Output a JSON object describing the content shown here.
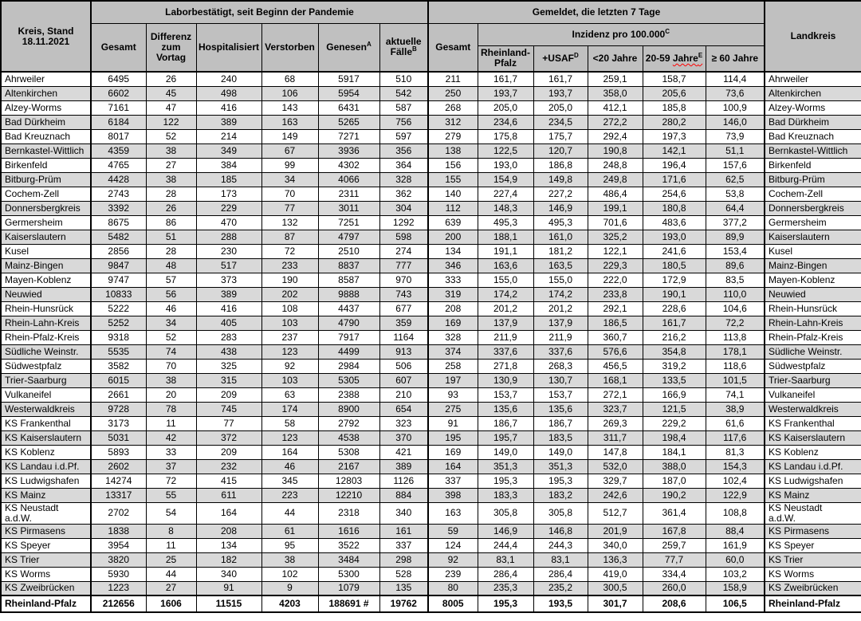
{
  "colors": {
    "header_bg": "#c0c0c0",
    "stripe_bg": "#d9d9d9",
    "row_bg": "#ffffff",
    "squiggle_color": "#ff0000"
  },
  "header": {
    "corner": "Kreis, Stand\n18.11.2021",
    "labor_group": "Laborbestätigt, seit Beginn der Pandemie",
    "gemeldet_group": "Gemeldet, die letzten 7 Tage",
    "inzidenz_group": "Inzidenz pro 100.000",
    "inzidenz_group_sup": "C",
    "landkreis": "Landkreis",
    "gemeldet_gesamt": "Gesamt",
    "labor_cols": [
      {
        "label": "Gesamt",
        "sup": ""
      },
      {
        "label": "Differenz zum Vortag",
        "sup": ""
      },
      {
        "label": "Hospitalisiert",
        "sup": ""
      },
      {
        "label": "Verstorben",
        "sup": ""
      },
      {
        "label": "Genesen",
        "sup": "A"
      },
      {
        "label": "aktuelle Fälle",
        "sup": "B"
      }
    ],
    "inzidenz_cols": [
      {
        "label": "Rheinland-Pfalz",
        "sup": ""
      },
      {
        "label": "+USAF",
        "sup": "D"
      },
      {
        "label": "<20 Jahre",
        "sup": ""
      },
      {
        "label": "20-59 ",
        "squiggle": "Jahre",
        "sup": "E"
      },
      {
        "label": "≥ 60 Jahre",
        "sup": ""
      }
    ]
  },
  "rows": [
    {
      "kreis": "Ahrweiler",
      "values": [
        "6495",
        "26",
        "240",
        "68",
        "5917",
        "510",
        "211",
        "161,7",
        "161,7",
        "259,1",
        "158,7",
        "114,4"
      ]
    },
    {
      "kreis": "Altenkirchen",
      "values": [
        "6602",
        "45",
        "498",
        "106",
        "5954",
        "542",
        "250",
        "193,7",
        "193,7",
        "358,0",
        "205,6",
        "73,6"
      ]
    },
    {
      "kreis": "Alzey-Worms",
      "values": [
        "7161",
        "47",
        "416",
        "143",
        "6431",
        "587",
        "268",
        "205,0",
        "205,0",
        "412,1",
        "185,8",
        "100,9"
      ]
    },
    {
      "kreis": "Bad Dürkheim",
      "values": [
        "6184",
        "122",
        "389",
        "163",
        "5265",
        "756",
        "312",
        "234,6",
        "234,5",
        "272,2",
        "280,2",
        "146,0"
      ]
    },
    {
      "kreis": "Bad Kreuznach",
      "values": [
        "8017",
        "52",
        "214",
        "149",
        "7271",
        "597",
        "279",
        "175,8",
        "175,7",
        "292,4",
        "197,3",
        "73,9"
      ]
    },
    {
      "kreis": "Bernkastel-Wittlich",
      "values": [
        "4359",
        "38",
        "349",
        "67",
        "3936",
        "356",
        "138",
        "122,5",
        "120,7",
        "190,8",
        "142,1",
        "51,1"
      ]
    },
    {
      "kreis": "Birkenfeld",
      "values": [
        "4765",
        "27",
        "384",
        "99",
        "4302",
        "364",
        "156",
        "193,0",
        "186,8",
        "248,8",
        "196,4",
        "157,6"
      ]
    },
    {
      "kreis": "Bitburg-Prüm",
      "values": [
        "4428",
        "38",
        "185",
        "34",
        "4066",
        "328",
        "155",
        "154,9",
        "149,8",
        "249,8",
        "171,6",
        "62,5"
      ]
    },
    {
      "kreis": "Cochem-Zell",
      "values": [
        "2743",
        "28",
        "173",
        "70",
        "2311",
        "362",
        "140",
        "227,4",
        "227,2",
        "486,4",
        "254,6",
        "53,8"
      ]
    },
    {
      "kreis": "Donnersbergkreis",
      "values": [
        "3392",
        "26",
        "229",
        "77",
        "3011",
        "304",
        "112",
        "148,3",
        "146,9",
        "199,1",
        "180,8",
        "64,4"
      ]
    },
    {
      "kreis": "Germersheim",
      "values": [
        "8675",
        "86",
        "470",
        "132",
        "7251",
        "1292",
        "639",
        "495,3",
        "495,3",
        "701,6",
        "483,6",
        "377,2"
      ]
    },
    {
      "kreis": "Kaiserslautern",
      "values": [
        "5482",
        "51",
        "288",
        "87",
        "4797",
        "598",
        "200",
        "188,1",
        "161,0",
        "325,2",
        "193,0",
        "89,9"
      ]
    },
    {
      "kreis": "Kusel",
      "values": [
        "2856",
        "28",
        "230",
        "72",
        "2510",
        "274",
        "134",
        "191,1",
        "181,2",
        "122,1",
        "241,6",
        "153,4"
      ]
    },
    {
      "kreis": "Mainz-Bingen",
      "values": [
        "9847",
        "48",
        "517",
        "233",
        "8837",
        "777",
        "346",
        "163,6",
        "163,5",
        "229,3",
        "180,5",
        "89,6"
      ]
    },
    {
      "kreis": "Mayen-Koblenz",
      "values": [
        "9747",
        "57",
        "373",
        "190",
        "8587",
        "970",
        "333",
        "155,0",
        "155,0",
        "222,0",
        "172,9",
        "83,5"
      ]
    },
    {
      "kreis": "Neuwied",
      "values": [
        "10833",
        "56",
        "389",
        "202",
        "9888",
        "743",
        "319",
        "174,2",
        "174,2",
        "233,8",
        "190,1",
        "110,0"
      ]
    },
    {
      "kreis": "Rhein-Hunsrück",
      "values": [
        "5222",
        "46",
        "416",
        "108",
        "4437",
        "677",
        "208",
        "201,2",
        "201,2",
        "292,1",
        "228,6",
        "104,6"
      ]
    },
    {
      "kreis": "Rhein-Lahn-Kreis",
      "values": [
        "5252",
        "34",
        "405",
        "103",
        "4790",
        "359",
        "169",
        "137,9",
        "137,9",
        "186,5",
        "161,7",
        "72,2"
      ]
    },
    {
      "kreis": "Rhein-Pfalz-Kreis",
      "values": [
        "9318",
        "52",
        "283",
        "237",
        "7917",
        "1164",
        "328",
        "211,9",
        "211,9",
        "360,7",
        "216,2",
        "113,8"
      ]
    },
    {
      "kreis": "Südliche Weinstr.",
      "values": [
        "5535",
        "74",
        "438",
        "123",
        "4499",
        "913",
        "374",
        "337,6",
        "337,6",
        "576,6",
        "354,8",
        "178,1"
      ]
    },
    {
      "kreis": "Südwestpfalz",
      "values": [
        "3582",
        "70",
        "325",
        "92",
        "2984",
        "506",
        "258",
        "271,8",
        "268,3",
        "456,5",
        "319,2",
        "118,6"
      ]
    },
    {
      "kreis": "Trier-Saarburg",
      "values": [
        "6015",
        "38",
        "315",
        "103",
        "5305",
        "607",
        "197",
        "130,9",
        "130,7",
        "168,1",
        "133,5",
        "101,5"
      ]
    },
    {
      "kreis": "Vulkaneifel",
      "values": [
        "2661",
        "20",
        "209",
        "63",
        "2388",
        "210",
        "93",
        "153,7",
        "153,7",
        "272,1",
        "166,9",
        "74,1"
      ]
    },
    {
      "kreis": "Westerwaldkreis",
      "values": [
        "9728",
        "78",
        "745",
        "174",
        "8900",
        "654",
        "275",
        "135,6",
        "135,6",
        "323,7",
        "121,5",
        "38,9"
      ]
    },
    {
      "kreis": "KS Frankenthal",
      "values": [
        "3173",
        "11",
        "77",
        "58",
        "2792",
        "323",
        "91",
        "186,7",
        "186,7",
        "269,3",
        "229,2",
        "61,6"
      ]
    },
    {
      "kreis": "KS Kaiserslautern",
      "values": [
        "5031",
        "42",
        "372",
        "123",
        "4538",
        "370",
        "195",
        "195,7",
        "183,5",
        "311,7",
        "198,4",
        "117,6"
      ]
    },
    {
      "kreis": "KS Koblenz",
      "values": [
        "5893",
        "33",
        "209",
        "164",
        "5308",
        "421",
        "169",
        "149,0",
        "149,0",
        "147,8",
        "184,1",
        "81,3"
      ]
    },
    {
      "kreis": "KS Landau i.d.Pf.",
      "values": [
        "2602",
        "37",
        "232",
        "46",
        "2167",
        "389",
        "164",
        "351,3",
        "351,3",
        "532,0",
        "388,0",
        "154,3"
      ]
    },
    {
      "kreis": "KS Ludwigshafen",
      "values": [
        "14274",
        "72",
        "415",
        "345",
        "12803",
        "1126",
        "337",
        "195,3",
        "195,3",
        "329,7",
        "187,0",
        "102,4"
      ]
    },
    {
      "kreis": "KS Mainz",
      "values": [
        "13317",
        "55",
        "611",
        "223",
        "12210",
        "884",
        "398",
        "183,3",
        "183,2",
        "242,6",
        "190,2",
        "122,9"
      ]
    },
    {
      "kreis": "KS Neustadt\na.d.W.",
      "values": [
        "2702",
        "54",
        "164",
        "44",
        "2318",
        "340",
        "163",
        "305,8",
        "305,8",
        "512,7",
        "361,4",
        "108,8"
      ]
    },
    {
      "kreis": "KS Pirmasens",
      "values": [
        "1838",
        "8",
        "208",
        "61",
        "1616",
        "161",
        "59",
        "146,9",
        "146,8",
        "201,9",
        "167,8",
        "88,4"
      ]
    },
    {
      "kreis": "KS Speyer",
      "values": [
        "3954",
        "11",
        "134",
        "95",
        "3522",
        "337",
        "124",
        "244,4",
        "244,3",
        "340,0",
        "259,7",
        "161,9"
      ]
    },
    {
      "kreis": "KS Trier",
      "values": [
        "3820",
        "25",
        "182",
        "38",
        "3484",
        "298",
        "92",
        "83,1",
        "83,1",
        "136,3",
        "77,7",
        "60,0"
      ]
    },
    {
      "kreis": "KS Worms",
      "values": [
        "5930",
        "44",
        "340",
        "102",
        "5300",
        "528",
        "239",
        "286,4",
        "286,4",
        "419,0",
        "334,4",
        "103,2"
      ]
    },
    {
      "kreis": "KS Zweibrücken",
      "values": [
        "1223",
        "27",
        "91",
        "9",
        "1079",
        "135",
        "80",
        "235,3",
        "235,2",
        "300,5",
        "260,0",
        "158,9"
      ]
    }
  ],
  "total_row": {
    "kreis": "Rheinland-Pfalz",
    "values": [
      "212656",
      "1606",
      "11515",
      "4203",
      "188691 #",
      "19762",
      "8005",
      "195,3",
      "193,5",
      "301,7",
      "208,6",
      "106,5"
    ]
  }
}
